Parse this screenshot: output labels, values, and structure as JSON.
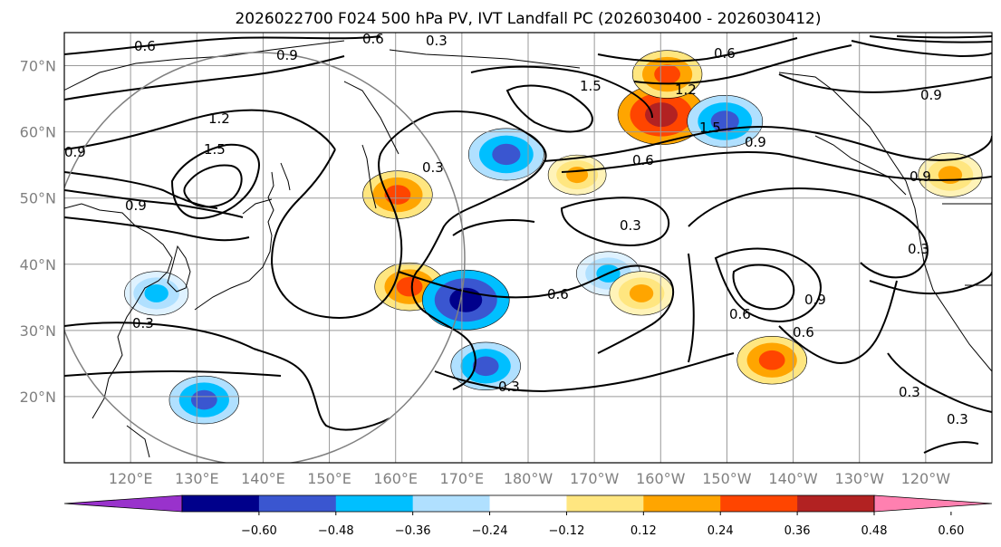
{
  "title": "2026022700 F024 500 hPa PV, IVT Landfall PC (2026030400 - 2026030412)",
  "chart_data": {
    "type": "heatmap",
    "title": "2026022700 F024 500 hPa PV, IVT Landfall PC (2026030400 - 2026030412)",
    "lon_range": [
      110,
      250
    ],
    "lat_range": [
      10,
      75
    ],
    "lat_ticks": [
      "20°N",
      "30°N",
      "40°N",
      "50°N",
      "60°N",
      "70°N"
    ],
    "lon_ticks": [
      "120°E",
      "130°E",
      "140°E",
      "150°E",
      "160°E",
      "170°E",
      "180°W",
      "170°W",
      "160°W",
      "150°W",
      "140°W",
      "130°W",
      "120°W"
    ],
    "grid": true,
    "colorbar": {
      "orientation": "horizontal",
      "extend": "both",
      "ticks": [
        "−0.60",
        "−0.48",
        "−0.36",
        "−0.24",
        "−0.12",
        "0.12",
        "0.24",
        "0.36",
        "0.48",
        "0.60"
      ],
      "colors": [
        "#9932cc",
        "#00008b",
        "#3a56d0",
        "#00bfff",
        "#b0e0ff",
        "#ffffff",
        "#ffe680",
        "#ffa500",
        "#ff4500",
        "#b22222",
        "#ff80b0"
      ]
    },
    "contour_labels": [
      "0.3",
      "0.6",
      "0.9",
      "1.2",
      "1.5"
    ],
    "shaded_blobs": [
      {
        "lon": 160.3,
        "lat": 50.5,
        "value": 0.4,
        "sign": "pos"
      },
      {
        "lon": 162.1,
        "lat": 36.6,
        "value": 0.4,
        "sign": "pos"
      },
      {
        "lon": 170.6,
        "lat": 34.6,
        "value": -0.55,
        "sign": "neg"
      },
      {
        "lon": 173.6,
        "lat": 24.6,
        "value": -0.4,
        "sign": "neg"
      },
      {
        "lon": 176.7,
        "lat": 56.6,
        "value": -0.45,
        "sign": "neg"
      },
      {
        "lon": 192.1,
        "lat": 38.6,
        "value": -0.35,
        "sign": "neg"
      },
      {
        "lon": 200.1,
        "lat": 62.6,
        "value": 0.55,
        "sign": "pos"
      },
      {
        "lon": 209.7,
        "lat": 61.6,
        "value": -0.45,
        "sign": "neg"
      },
      {
        "lon": 201.0,
        "lat": 68.7,
        "value": 0.4,
        "sign": "pos"
      },
      {
        "lon": 216.8,
        "lat": 25.5,
        "value": 0.4,
        "sign": "pos"
      },
      {
        "lon": 131.1,
        "lat": 19.5,
        "value": -0.4,
        "sign": "neg"
      },
      {
        "lon": 197.1,
        "lat": 35.6,
        "value": 0.35,
        "sign": "pos"
      },
      {
        "lon": 187.4,
        "lat": 53.5,
        "value": 0.3,
        "sign": "pos"
      },
      {
        "lon": 243.7,
        "lat": 53.5,
        "value": 0.35,
        "sign": "pos"
      },
      {
        "lon": 123.9,
        "lat": 35.6,
        "value": -0.35,
        "sign": "neg"
      }
    ]
  }
}
